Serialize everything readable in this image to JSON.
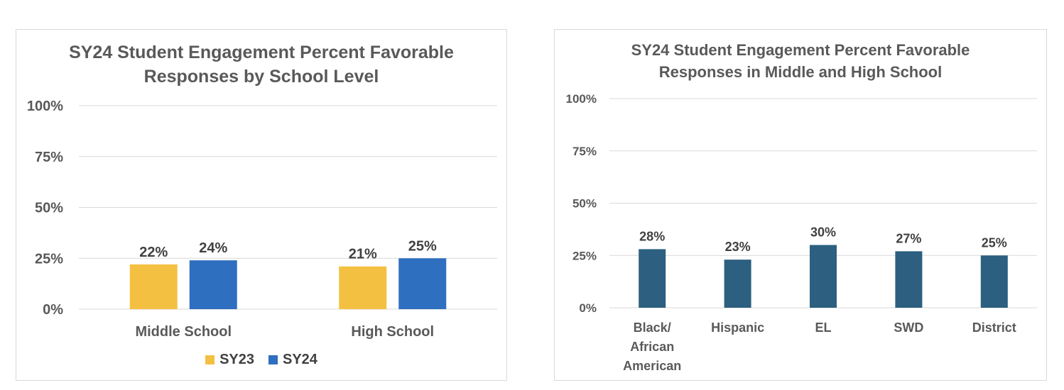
{
  "chart_data": [
    {
      "type": "bar",
      "title": [
        "SY24 Student Engagement Percent Favorable",
        "Responses by School Level"
      ],
      "categories": [
        "Middle School",
        "High School"
      ],
      "series": [
        {
          "name": "SY23",
          "values": [
            22,
            21
          ],
          "labels": [
            "22%",
            "21%"
          ],
          "color": "#F4C042"
        },
        {
          "name": "SY24",
          "values": [
            24,
            25
          ],
          "labels": [
            "24%",
            "25%"
          ],
          "color": "#2F6FBF"
        }
      ],
      "yticks": [
        "0%",
        "25%",
        "50%",
        "75%",
        "100%"
      ],
      "ylim": [
        0,
        100
      ],
      "grid": true,
      "legend": "bottom"
    },
    {
      "type": "bar",
      "title": [
        "SY24 Student Engagement Percent Favorable",
        "Responses in Middle and High School"
      ],
      "categories": [
        [
          "Black/",
          "African",
          "American"
        ],
        [
          "Hispanic"
        ],
        [
          "EL"
        ],
        [
          "SWD"
        ],
        [
          "District"
        ]
      ],
      "series": [
        {
          "values": [
            28,
            23,
            30,
            27,
            25
          ],
          "labels": [
            "28%",
            "23%",
            "30%",
            "27%",
            "25%"
          ],
          "color": "#2C5F80"
        }
      ],
      "yticks": [
        "0%",
        "25%",
        "50%",
        "75%",
        "100%"
      ],
      "ylim": [
        0,
        100
      ],
      "grid": true
    }
  ]
}
